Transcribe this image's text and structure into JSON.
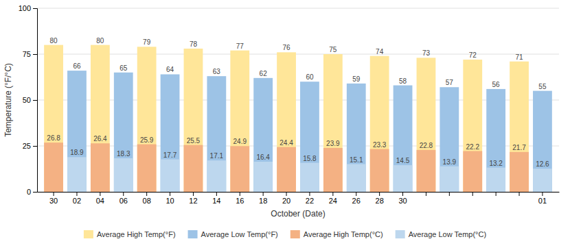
{
  "chart_data": {
    "type": "bar",
    "categories": [
      "30",
      "02",
      "04",
      "06",
      "08",
      "10",
      "12",
      "14",
      "16",
      "18",
      "20",
      "22",
      "24",
      "26",
      "28",
      "30",
      null,
      null,
      null,
      null,
      null,
      "01"
    ],
    "series": [
      {
        "name": "Average High Temp(°F)",
        "color": "#FFE699",
        "values": [
          80,
          null,
          80,
          null,
          79,
          null,
          78,
          null,
          77,
          null,
          76,
          null,
          75,
          null,
          74,
          null,
          73,
          null,
          72,
          null,
          71,
          null
        ]
      },
      {
        "name": "Average Low Temp(°F)",
        "color": "#9DC3E6",
        "values": [
          null,
          66,
          null,
          65,
          null,
          64,
          null,
          63,
          null,
          62,
          null,
          60,
          null,
          59,
          null,
          58,
          null,
          57,
          null,
          56,
          null,
          55
        ]
      },
      {
        "name": "Average High Temp(°C)",
        "color": "#F4B183",
        "values": [
          26.8,
          null,
          26.4,
          null,
          25.9,
          null,
          25.5,
          null,
          24.9,
          null,
          24.4,
          null,
          23.9,
          null,
          23.3,
          null,
          22.8,
          null,
          22.2,
          null,
          21.7,
          null
        ]
      },
      {
        "name": "Average Low Temp(°C)",
        "color": "#BDD7EE",
        "values": [
          null,
          18.9,
          null,
          18.3,
          null,
          17.7,
          null,
          17.1,
          null,
          16.4,
          null,
          15.8,
          null,
          15.1,
          null,
          14.5,
          null,
          13.9,
          null,
          13.2,
          null,
          12.6
        ]
      }
    ],
    "xlabel": "October (Date)",
    "ylabel": "Temperature (°F/°C)",
    "ylim": [
      0,
      100
    ],
    "yticks": [
      0,
      25,
      50,
      75,
      100
    ],
    "grid": true,
    "legend": "bottom",
    "data_labels": true
  }
}
